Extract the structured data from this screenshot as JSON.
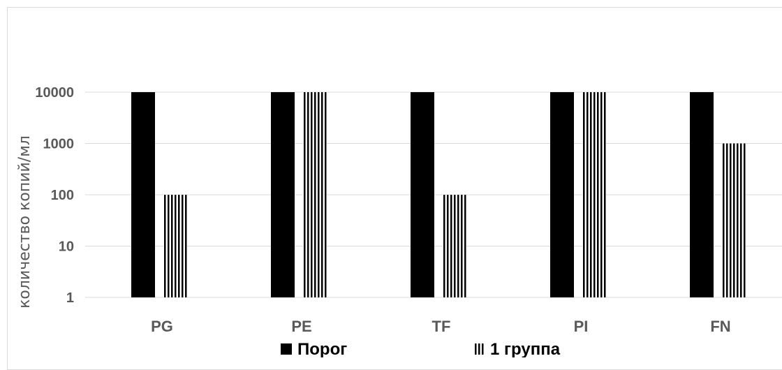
{
  "chart_data": {
    "type": "bar",
    "y_scale": "log",
    "ylim": [
      1,
      10000
    ],
    "y_ticks": [
      "1",
      "10",
      "100",
      "1000",
      "10000"
    ],
    "y_tick_values": [
      1,
      10,
      100,
      1000,
      10000
    ],
    "ylabel": "количество копий/мл",
    "grid": true,
    "legend_position": "bottom",
    "categories": [
      "PG",
      "PE",
      "TF",
      "PI",
      "FN"
    ],
    "series": [
      {
        "name": "Порог",
        "values": [
          10000,
          10000,
          10000,
          10000,
          10000
        ],
        "color": "#000000",
        "pattern": "solid"
      },
      {
        "name": "1 группа",
        "values": [
          100,
          10000,
          100,
          10000,
          1000
        ],
        "color": "#000000",
        "pattern": "vertical-stripes"
      }
    ]
  }
}
